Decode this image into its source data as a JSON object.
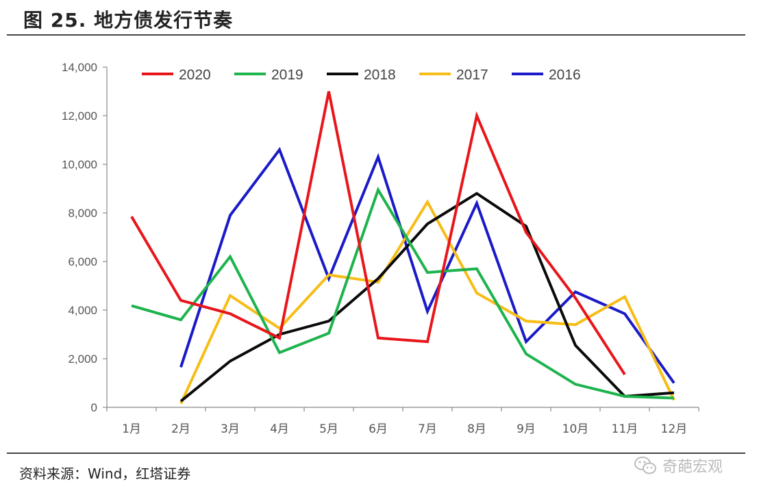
{
  "figure": {
    "title": "图 25. 地方债发行节奏",
    "source": "资料来源：Wind，红塔证券",
    "watermark": "奇葩宏观",
    "watermark_icon": "wechat-icon"
  },
  "chart_data": {
    "type": "line",
    "title": "",
    "xlabel": "",
    "ylabel": "",
    "categories": [
      "1月",
      "2月",
      "3月",
      "4月",
      "5月",
      "6月",
      "7月",
      "8月",
      "9月",
      "10月",
      "11月",
      "12月"
    ],
    "ylim": [
      0,
      14000
    ],
    "yticks": [
      0,
      2000,
      4000,
      6000,
      8000,
      10000,
      12000,
      14000
    ],
    "ytick_labels": [
      "0",
      "2,000",
      "4,000",
      "6,000",
      "8,000",
      "10,000",
      "12,000",
      "14,000"
    ],
    "grid": false,
    "legend_position": "top",
    "series": [
      {
        "name": "2020",
        "color": "#e8161b",
        "values": [
          7850,
          4400,
          3850,
          2850,
          13000,
          2850,
          2700,
          12000,
          7200,
          4500,
          1350,
          null
        ]
      },
      {
        "name": "2019",
        "color": "#1db34d",
        "values": [
          4180,
          3600,
          6200,
          2250,
          3050,
          8950,
          5550,
          5700,
          2200,
          950,
          450,
          380
        ]
      },
      {
        "name": "2018",
        "color": "#0a0a0a",
        "values": [
          null,
          250,
          1900,
          3000,
          3550,
          5300,
          7550,
          8800,
          7450,
          2550,
          450,
          600
        ]
      },
      {
        "name": "2017",
        "color": "#f7bd17",
        "values": [
          null,
          150,
          4600,
          3250,
          5450,
          5150,
          8450,
          4700,
          3550,
          3400,
          4550,
          300
        ]
      },
      {
        "name": "2016",
        "color": "#1a1ac8",
        "values": [
          null,
          1650,
          7900,
          10600,
          5300,
          10300,
          3950,
          8400,
          2700,
          4750,
          3850,
          1000
        ]
      }
    ]
  }
}
